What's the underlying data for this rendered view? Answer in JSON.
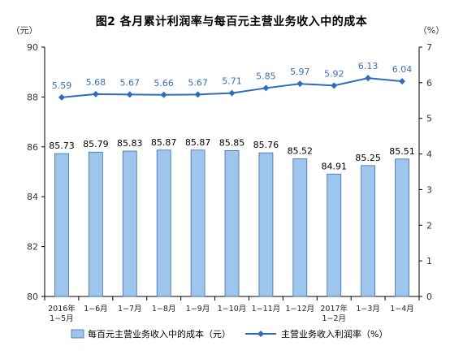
{
  "chart_data": {
    "type": "bar+line",
    "title": "图2  各月累计利润率与每百元主营业务收入中的成本",
    "left_unit": "（元）",
    "right_unit": "（%）",
    "left_ylim": [
      80,
      90
    ],
    "left_ticks": [
      80,
      82,
      84,
      86,
      88,
      90
    ],
    "right_ylim": [
      0,
      7
    ],
    "right_ticks": [
      0,
      1,
      2,
      3,
      4,
      5,
      6,
      7
    ],
    "categories": [
      [
        "2016年",
        "1−5月"
      ],
      [
        "1−6月"
      ],
      [
        "1−7月"
      ],
      [
        "1−8月"
      ],
      [
        "1−9月"
      ],
      [
        "1−10月"
      ],
      [
        "1−11月"
      ],
      [
        "1−12月"
      ],
      [
        "2017年",
        "1−2月"
      ],
      [
        "1−3月"
      ],
      [
        "1−4月"
      ]
    ],
    "series": [
      {
        "name": "每百元主营业务收入中的成本（元）",
        "type": "bar",
        "axis": "left",
        "color": "#9ec5ec",
        "values": [
          85.73,
          85.79,
          85.83,
          85.87,
          85.87,
          85.85,
          85.76,
          85.52,
          84.91,
          85.25,
          85.51
        ]
      },
      {
        "name": "主营业务收入利润率（%）",
        "type": "line",
        "axis": "right",
        "color": "#2e6cc0",
        "values": [
          5.59,
          5.68,
          5.67,
          5.66,
          5.67,
          5.71,
          5.85,
          5.97,
          5.92,
          6.13,
          6.04
        ]
      }
    ],
    "legend_position": "bottom"
  }
}
